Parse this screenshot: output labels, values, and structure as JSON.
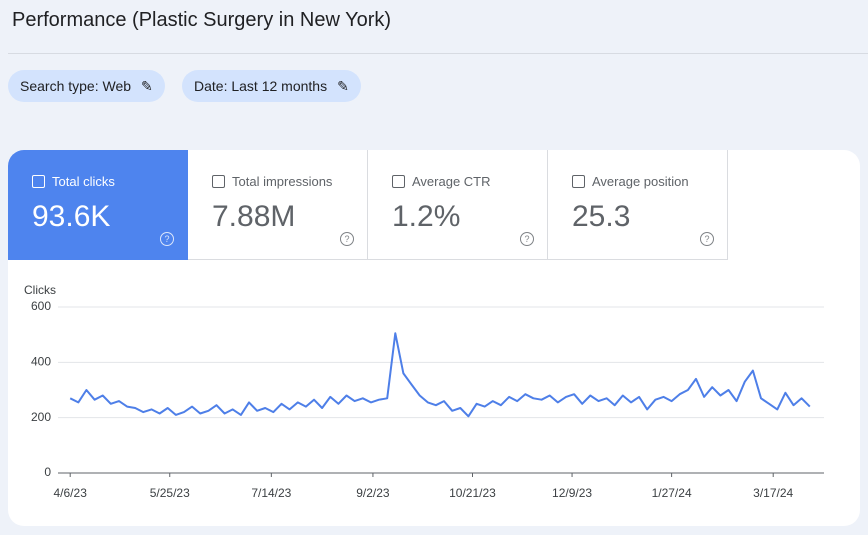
{
  "header": {
    "title": "Performance (Plastic Surgery in New York)"
  },
  "filters": [
    "Search type: Web",
    "Date: Last 12 months"
  ],
  "metrics": [
    {
      "label": "Total clicks",
      "value": "93.6K"
    },
    {
      "label": "Total impressions",
      "value": "7.88M"
    },
    {
      "label": "Average CTR",
      "value": "1.2%"
    },
    {
      "label": "Average position",
      "value": "25.3"
    }
  ],
  "chart_data": {
    "type": "line",
    "y_label": "Clicks",
    "grid": true,
    "x": [
      0,
      4,
      8,
      12,
      16,
      20,
      24,
      28,
      32,
      36,
      40,
      44,
      48,
      52,
      56,
      60,
      64,
      68,
      72,
      76,
      80,
      84,
      88,
      92,
      96,
      100,
      104,
      108,
      112,
      116,
      120,
      124,
      128,
      132,
      136,
      140,
      144,
      148,
      152,
      156,
      160,
      164,
      168,
      172,
      176,
      180,
      184,
      188,
      192,
      196,
      200,
      204,
      208,
      212,
      216,
      220,
      224,
      228,
      232,
      236,
      240,
      244,
      248,
      252,
      256,
      260,
      264,
      268,
      272,
      276,
      280,
      284,
      288,
      292,
      296,
      300,
      304,
      308,
      312,
      316,
      320,
      324,
      328,
      332,
      336,
      340,
      344,
      348,
      352,
      356,
      360,
      364
    ],
    "series": [
      {
        "name": "Clicks",
        "color": "#4e7fe8",
        "values": [
          270,
          255,
          300,
          265,
          280,
          250,
          260,
          240,
          235,
          220,
          230,
          215,
          235,
          210,
          220,
          240,
          215,
          225,
          245,
          215,
          230,
          210,
          255,
          225,
          235,
          220,
          250,
          230,
          255,
          240,
          265,
          235,
          275,
          250,
          280,
          260,
          270,
          255,
          265,
          270,
          505,
          360,
          320,
          280,
          255,
          245,
          260,
          225,
          235,
          205,
          250,
          240,
          260,
          245,
          275,
          260,
          285,
          270,
          265,
          280,
          255,
          275,
          285,
          250,
          280,
          260,
          270,
          245,
          280,
          255,
          275,
          230,
          265,
          275,
          260,
          285,
          300,
          340,
          275,
          310,
          280,
          300,
          260,
          330,
          370,
          270,
          250,
          230,
          290,
          245,
          270,
          240
        ]
      }
    ],
    "xlim": [
      -6,
      371
    ],
    "ylim": [
      0,
      600
    ],
    "yticks": [
      0,
      200,
      400,
      600
    ],
    "xticks": [
      {
        "value": 0,
        "label": "4/6/23"
      },
      {
        "value": 49,
        "label": "5/25/23"
      },
      {
        "value": 99,
        "label": "7/14/23"
      },
      {
        "value": 149,
        "label": "9/2/23"
      },
      {
        "value": 198,
        "label": "10/21/23"
      },
      {
        "value": 247,
        "label": "12/9/23"
      },
      {
        "value": 296,
        "label": "1/27/24"
      },
      {
        "value": 346,
        "label": "3/17/24"
      }
    ]
  }
}
